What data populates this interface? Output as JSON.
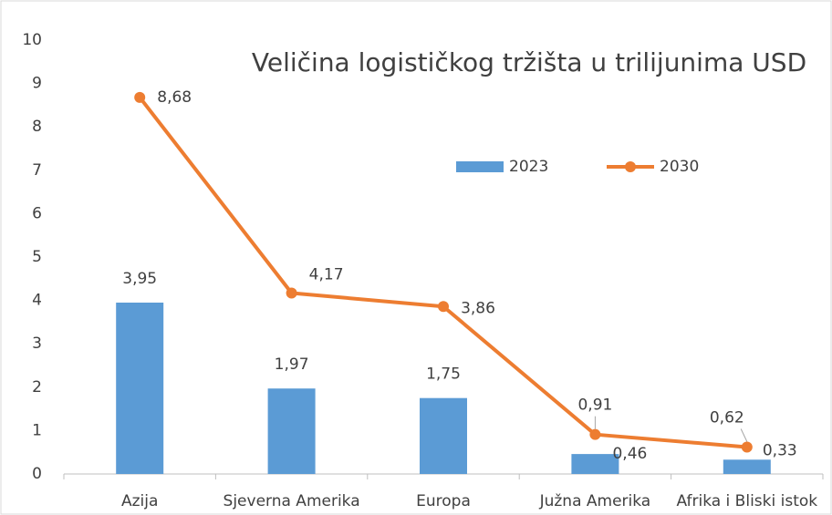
{
  "chart_data": {
    "type": "bar_line",
    "title": "Veličina logističkog tržišta u trilijunima USD",
    "categories": [
      "Azija",
      "Sjeverna Amerika",
      "Europa",
      "Južna Amerika",
      "Afrika i Bliski istok"
    ],
    "series": [
      {
        "name": "2023",
        "type": "bar",
        "color": "#5b9bd5",
        "values": [
          3.95,
          1.97,
          1.75,
          0.46,
          0.33
        ],
        "value_labels": [
          "3,95",
          "1,97",
          "1,75",
          "0,46",
          "0,33"
        ]
      },
      {
        "name": "2030",
        "type": "line",
        "color": "#ed7d31",
        "values": [
          8.68,
          4.17,
          3.86,
          0.91,
          0.62
        ],
        "value_labels": [
          "8,68",
          "4,17",
          "3,86",
          "0,91",
          "0,62"
        ]
      }
    ],
    "ylim": [
      0,
      10
    ],
    "yticks": [
      0,
      1,
      2,
      3,
      4,
      5,
      6,
      7,
      8,
      9,
      10
    ],
    "grid": false
  }
}
